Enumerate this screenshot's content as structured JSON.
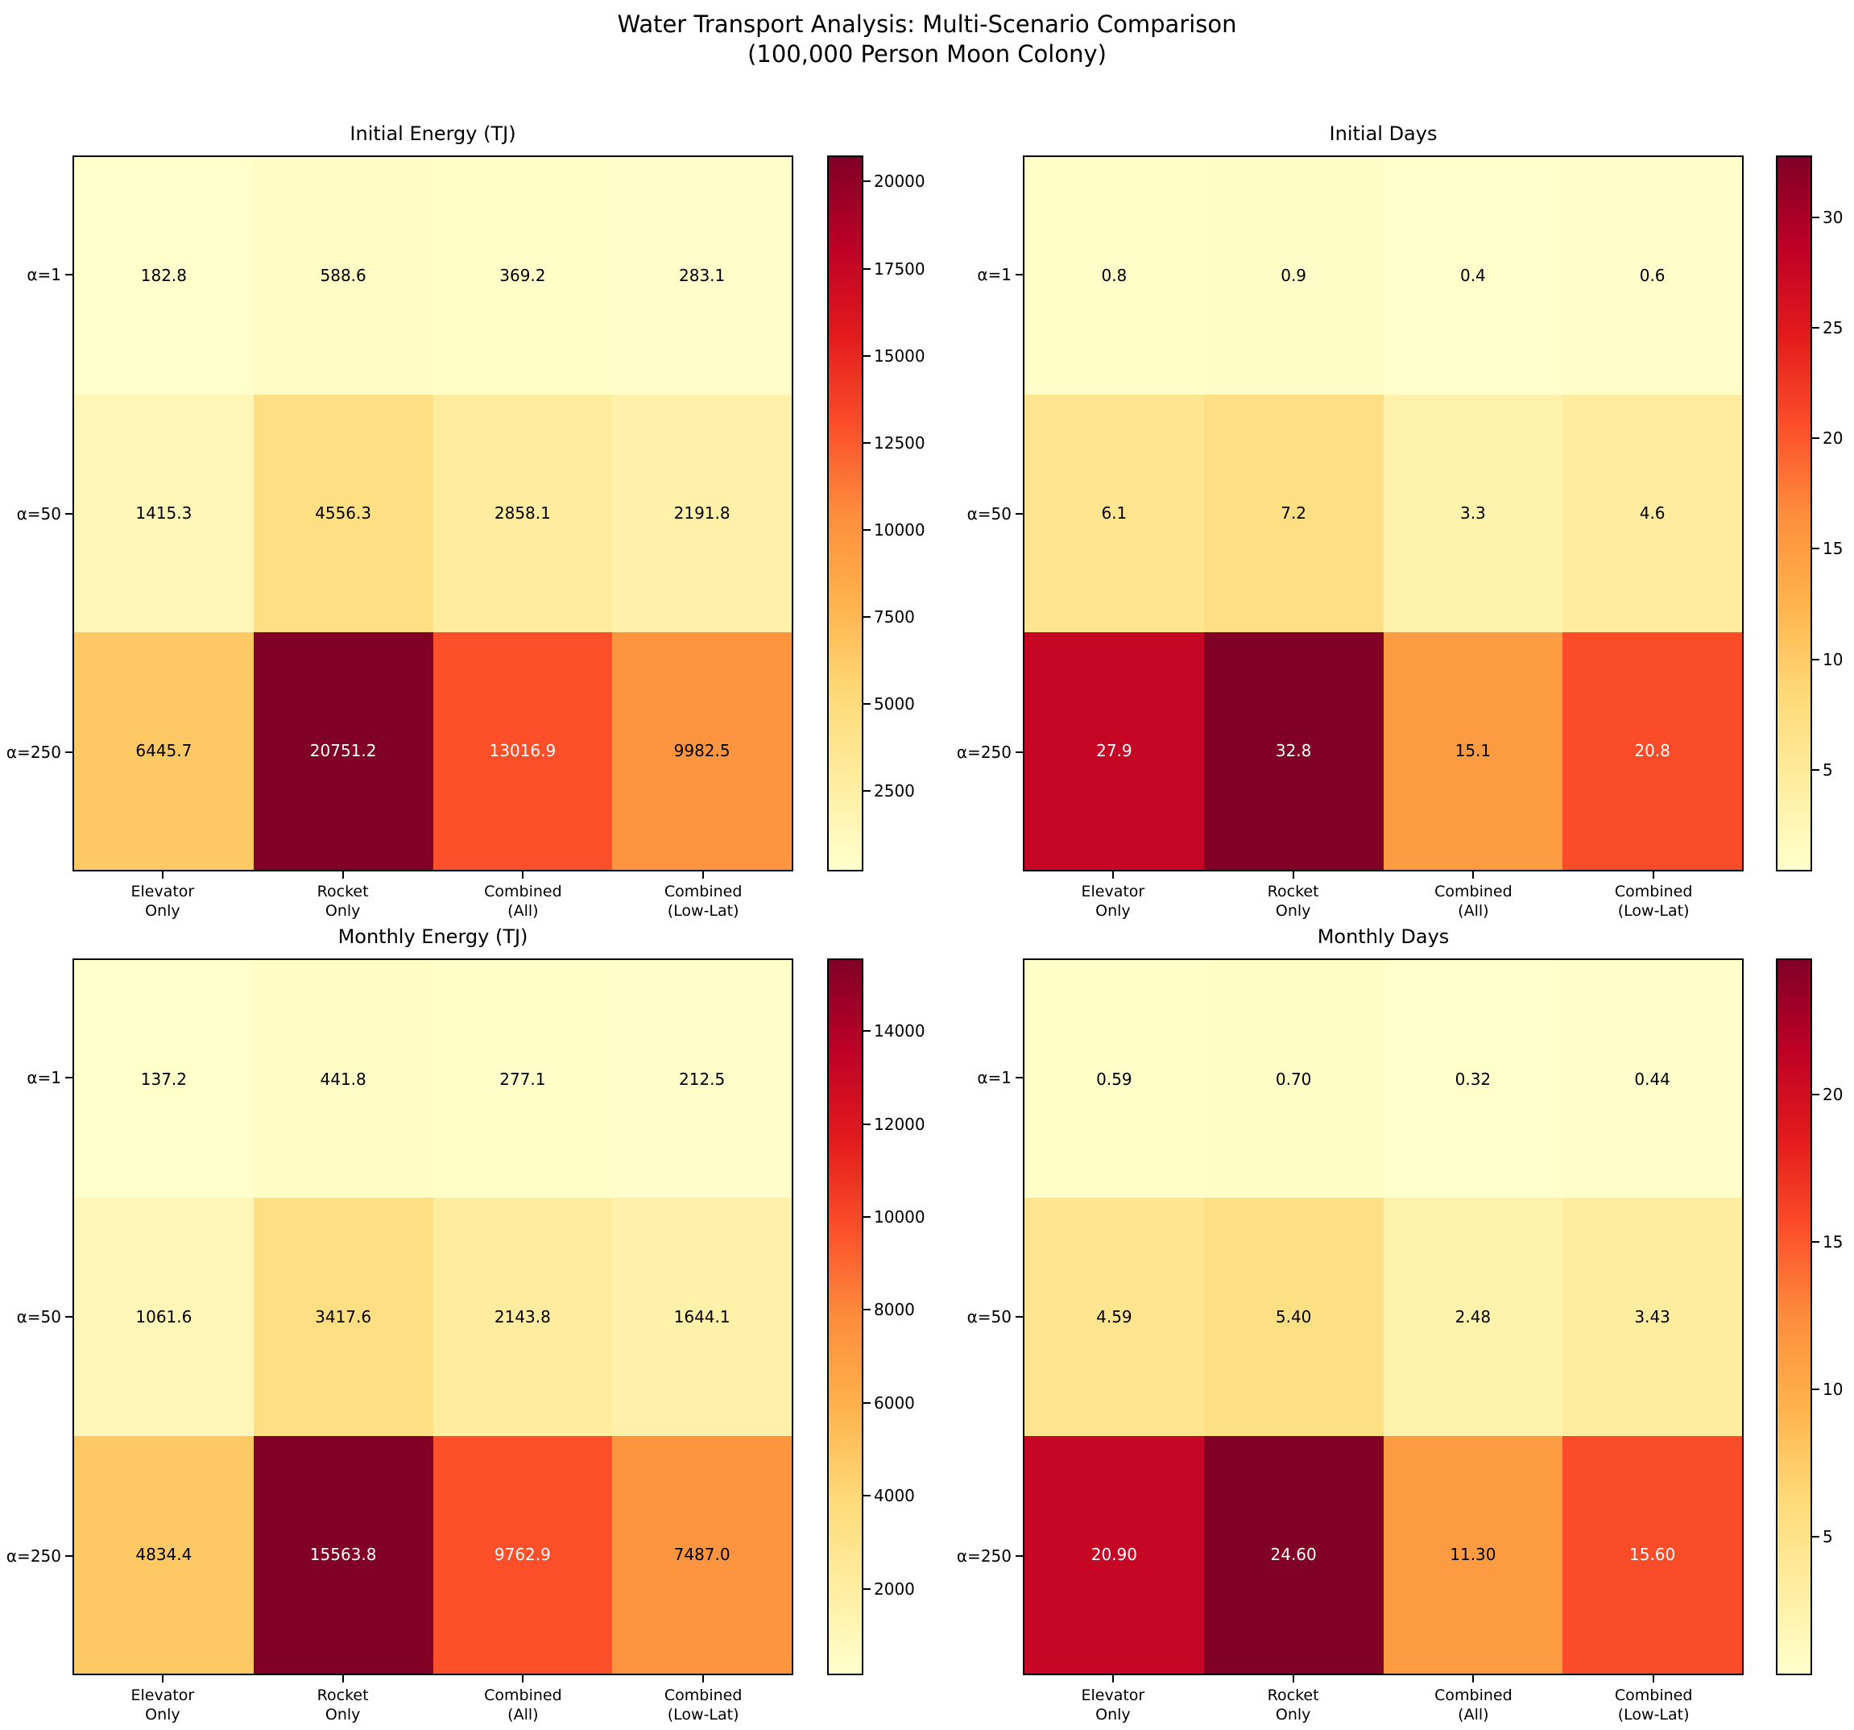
{
  "figure": {
    "title_line1": "Water Transport Analysis: Multi-Scenario Comparison",
    "title_line2": "(100,000 Person Moon Colony)",
    "background": "#ffffff"
  },
  "colormap": {
    "name": "YlOrRd",
    "stops": [
      {
        "t": 0.0,
        "hex": "#ffffcc"
      },
      {
        "t": 0.125,
        "hex": "#ffeda0"
      },
      {
        "t": 0.25,
        "hex": "#fed976"
      },
      {
        "t": 0.375,
        "hex": "#feb24c"
      },
      {
        "t": 0.5,
        "hex": "#fd8d3c"
      },
      {
        "t": 0.625,
        "hex": "#fc4e2a"
      },
      {
        "t": 0.75,
        "hex": "#e31a1c"
      },
      {
        "t": 0.875,
        "hex": "#bd0026"
      },
      {
        "t": 1.0,
        "hex": "#800026"
      }
    ]
  },
  "chart_data": [
    {
      "type": "heatmap",
      "title": "Initial Energy (TJ)",
      "row_labels": [
        "α=1",
        "α=50",
        "α=250"
      ],
      "col_labels": [
        [
          "Elevator",
          "Only"
        ],
        [
          "Rocket",
          "Only"
        ],
        [
          "Combined",
          "(All)"
        ],
        [
          "Combined",
          "(Low-Lat)"
        ]
      ],
      "values": [
        [
          182.8,
          588.6,
          369.2,
          283.1
        ],
        [
          1415.3,
          4556.3,
          2858.1,
          2191.8
        ],
        [
          6445.7,
          20751.2,
          13016.9,
          9982.5
        ]
      ],
      "value_labels": [
        [
          "182.8",
          "588.6",
          "369.2",
          "283.1"
        ],
        [
          "1415.3",
          "4556.3",
          "2858.1",
          "2191.8"
        ],
        [
          "6445.7",
          "20751.2",
          "13016.9",
          "9982.5"
        ]
      ],
      "text_colors": [
        [
          "black",
          "black",
          "black",
          "black"
        ],
        [
          "black",
          "black",
          "black",
          "black"
        ],
        [
          "black",
          "white",
          "white",
          "black"
        ]
      ],
      "vmin": 182.8,
      "vmax": 20751.2,
      "colorbar_ticks": [
        2500,
        5000,
        7500,
        10000,
        12500,
        15000,
        17500,
        20000
      ],
      "colorbar_tick_labels": [
        "2500",
        "5000",
        "7500",
        "10000",
        "12500",
        "15000",
        "17500",
        "20000"
      ]
    },
    {
      "type": "heatmap",
      "title": "Initial Days",
      "row_labels": [
        "α=1",
        "α=50",
        "α=250"
      ],
      "col_labels": [
        [
          "Elevator",
          "Only"
        ],
        [
          "Rocket",
          "Only"
        ],
        [
          "Combined",
          "(All)"
        ],
        [
          "Combined",
          "(Low-Lat)"
        ]
      ],
      "values": [
        [
          0.8,
          0.9,
          0.4,
          0.6
        ],
        [
          6.1,
          7.2,
          3.3,
          4.6
        ],
        [
          27.9,
          32.8,
          15.1,
          20.8
        ]
      ],
      "value_labels": [
        [
          "0.8",
          "0.9",
          "0.4",
          "0.6"
        ],
        [
          "6.1",
          "7.2",
          "3.3",
          "4.6"
        ],
        [
          "27.9",
          "32.8",
          "15.1",
          "20.8"
        ]
      ],
      "text_colors": [
        [
          "black",
          "black",
          "black",
          "black"
        ],
        [
          "black",
          "black",
          "black",
          "black"
        ],
        [
          "white",
          "white",
          "black",
          "white"
        ]
      ],
      "vmin": 0.4,
      "vmax": 32.8,
      "colorbar_ticks": [
        5,
        10,
        15,
        20,
        25,
        30
      ],
      "colorbar_tick_labels": [
        "5",
        "10",
        "15",
        "20",
        "25",
        "30"
      ]
    },
    {
      "type": "heatmap",
      "title": "Monthly Energy (TJ)",
      "row_labels": [
        "α=1",
        "α=50",
        "α=250"
      ],
      "col_labels": [
        [
          "Elevator",
          "Only"
        ],
        [
          "Rocket",
          "Only"
        ],
        [
          "Combined",
          "(All)"
        ],
        [
          "Combined",
          "(Low-Lat)"
        ]
      ],
      "values": [
        [
          137.2,
          441.8,
          277.1,
          212.5
        ],
        [
          1061.6,
          3417.6,
          2143.8,
          1644.1
        ],
        [
          4834.4,
          15563.8,
          9762.9,
          7487.0
        ]
      ],
      "value_labels": [
        [
          "137.2",
          "441.8",
          "277.1",
          "212.5"
        ],
        [
          "1061.6",
          "3417.6",
          "2143.8",
          "1644.1"
        ],
        [
          "4834.4",
          "15563.8",
          "9762.9",
          "7487.0"
        ]
      ],
      "text_colors": [
        [
          "black",
          "black",
          "black",
          "black"
        ],
        [
          "black",
          "black",
          "black",
          "black"
        ],
        [
          "black",
          "white",
          "white",
          "black"
        ]
      ],
      "vmin": 137.2,
      "vmax": 15563.8,
      "colorbar_ticks": [
        2000,
        4000,
        6000,
        8000,
        10000,
        12000,
        14000
      ],
      "colorbar_tick_labels": [
        "2000",
        "4000",
        "6000",
        "8000",
        "10000",
        "12000",
        "14000"
      ]
    },
    {
      "type": "heatmap",
      "title": "Monthly Days",
      "row_labels": [
        "α=1",
        "α=50",
        "α=250"
      ],
      "col_labels": [
        [
          "Elevator",
          "Only"
        ],
        [
          "Rocket",
          "Only"
        ],
        [
          "Combined",
          "(All)"
        ],
        [
          "Combined",
          "(Low-Lat)"
        ]
      ],
      "values": [
        [
          0.59,
          0.7,
          0.32,
          0.44
        ],
        [
          4.59,
          5.4,
          2.48,
          3.43
        ],
        [
          20.9,
          24.6,
          11.3,
          15.6
        ]
      ],
      "value_labels": [
        [
          "0.59",
          "0.70",
          "0.32",
          "0.44"
        ],
        [
          "4.59",
          "5.40",
          "2.48",
          "3.43"
        ],
        [
          "20.90",
          "24.60",
          "11.30",
          "15.60"
        ]
      ],
      "text_colors": [
        [
          "black",
          "black",
          "black",
          "black"
        ],
        [
          "black",
          "black",
          "black",
          "black"
        ],
        [
          "white",
          "white",
          "black",
          "white"
        ]
      ],
      "vmin": 0.32,
      "vmax": 24.6,
      "colorbar_ticks": [
        5,
        10,
        15,
        20
      ],
      "colorbar_tick_labels": [
        "5",
        "10",
        "15",
        "20"
      ]
    }
  ]
}
